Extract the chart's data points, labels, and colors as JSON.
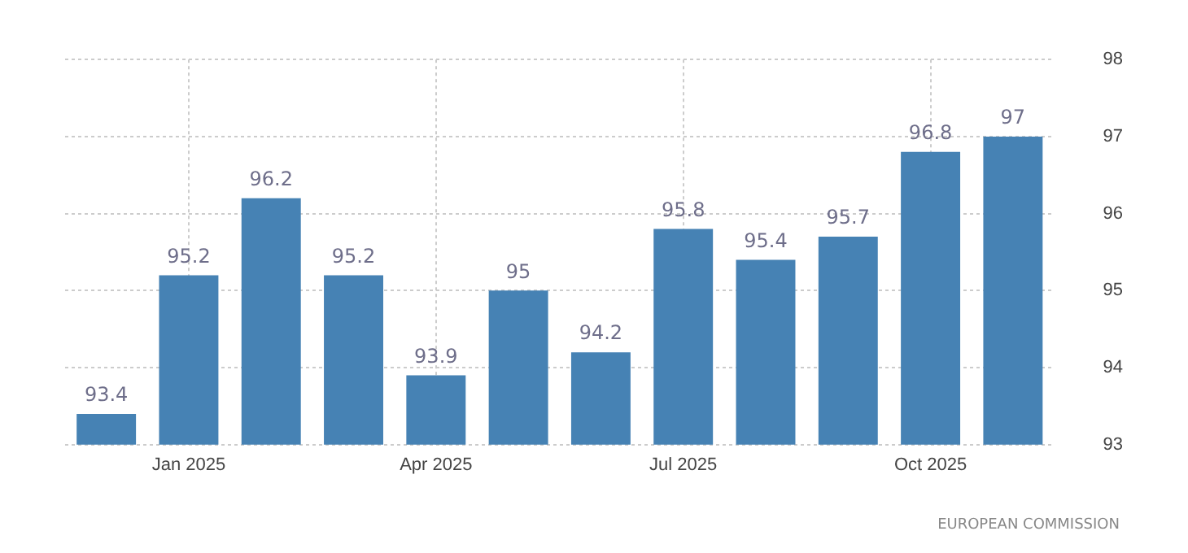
{
  "chart_data": {
    "type": "bar",
    "categories": [
      null,
      "Jan 2025",
      null,
      null,
      "Apr 2025",
      null,
      null,
      "Jul 2025",
      null,
      null,
      "Oct 2025",
      null
    ],
    "values": [
      93.4,
      95.2,
      96.2,
      95.2,
      93.9,
      95,
      94.2,
      95.8,
      95.4,
      95.7,
      96.8,
      97
    ],
    "color": "#4682b4",
    "ylim": [
      93,
      98
    ],
    "yticks": [
      93,
      94,
      95,
      96,
      97,
      98
    ],
    "grid": true,
    "data_labels": true,
    "annotations": [
      "EUROPEAN COMMISSION"
    ]
  }
}
